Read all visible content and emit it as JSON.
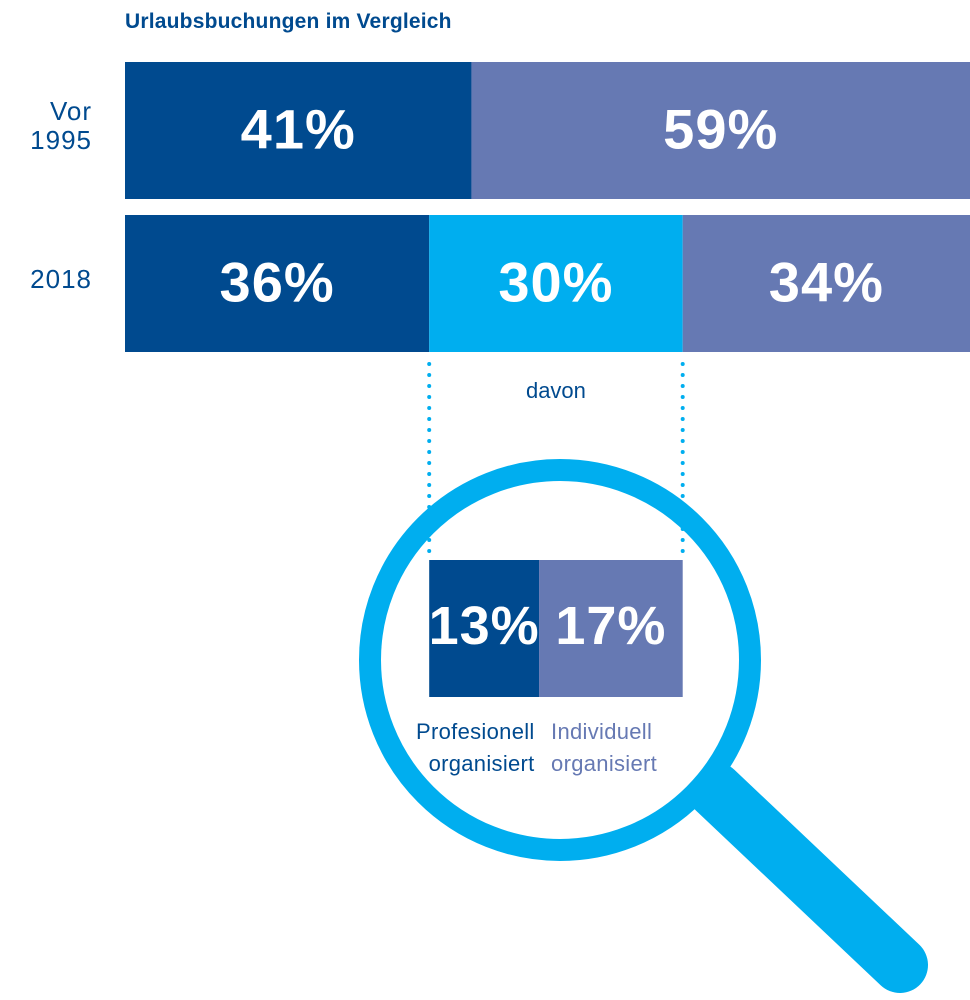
{
  "chart_data": {
    "type": "bar",
    "orientation": "horizontal",
    "stacked": true,
    "title": "Urlaubsbuchungen im Vergleich",
    "categories": [
      "Vor\n1995",
      "2018"
    ],
    "series": [
      {
        "color": "#004a8f",
        "values": [
          41,
          36
        ],
        "value_labels": [
          "41%",
          "36%"
        ]
      },
      {
        "color": "#00aeef",
        "values": [
          null,
          30
        ],
        "value_labels": [
          null,
          "30%"
        ]
      },
      {
        "color": "#6679b3",
        "values": [
          59,
          34
        ],
        "value_labels": [
          "59%",
          "34%"
        ]
      }
    ],
    "breakdown": {
      "label": "davon",
      "categories": [
        "Profesionell\norganisiert",
        "Individuell\norganisiert"
      ],
      "values": [
        13,
        17
      ],
      "value_labels": [
        "13%",
        "17%"
      ],
      "colors": [
        "#004a8f",
        "#6679b3"
      ]
    }
  }
}
